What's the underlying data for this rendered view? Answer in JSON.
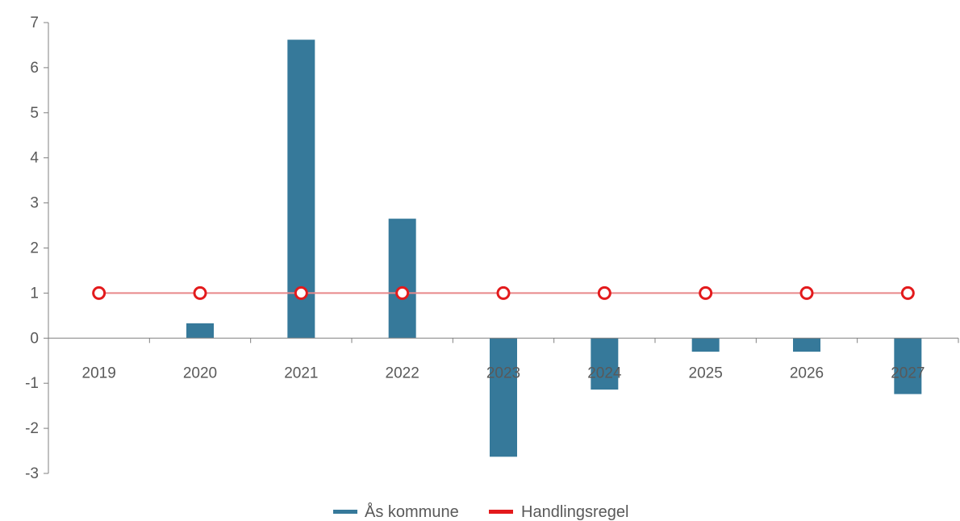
{
  "chart_data": {
    "type": "bar",
    "categories": [
      "2019",
      "2020",
      "2021",
      "2022",
      "2023",
      "2024",
      "2025",
      "2026",
      "2027"
    ],
    "series": [
      {
        "name": "Ås kommune",
        "type": "bar",
        "color": "#36799a",
        "values": [
          0,
          0.33,
          6.62,
          2.65,
          -2.63,
          -1.14,
          -0.3,
          -0.3,
          -1.24
        ]
      },
      {
        "name": "Handlingsregel",
        "type": "line",
        "color": "#e31a1c",
        "values": [
          1,
          1,
          1,
          1,
          1,
          1,
          1,
          1,
          1
        ]
      }
    ],
    "yticks": [
      "7",
      "6",
      "5",
      "4",
      "3",
      "2",
      "1",
      "0",
      "-1",
      "-2",
      "-3"
    ],
    "ylim": [
      -3,
      7
    ],
    "title": "",
    "xlabel": "",
    "ylabel": "",
    "legend_position": "bottom-center",
    "grid": false
  }
}
